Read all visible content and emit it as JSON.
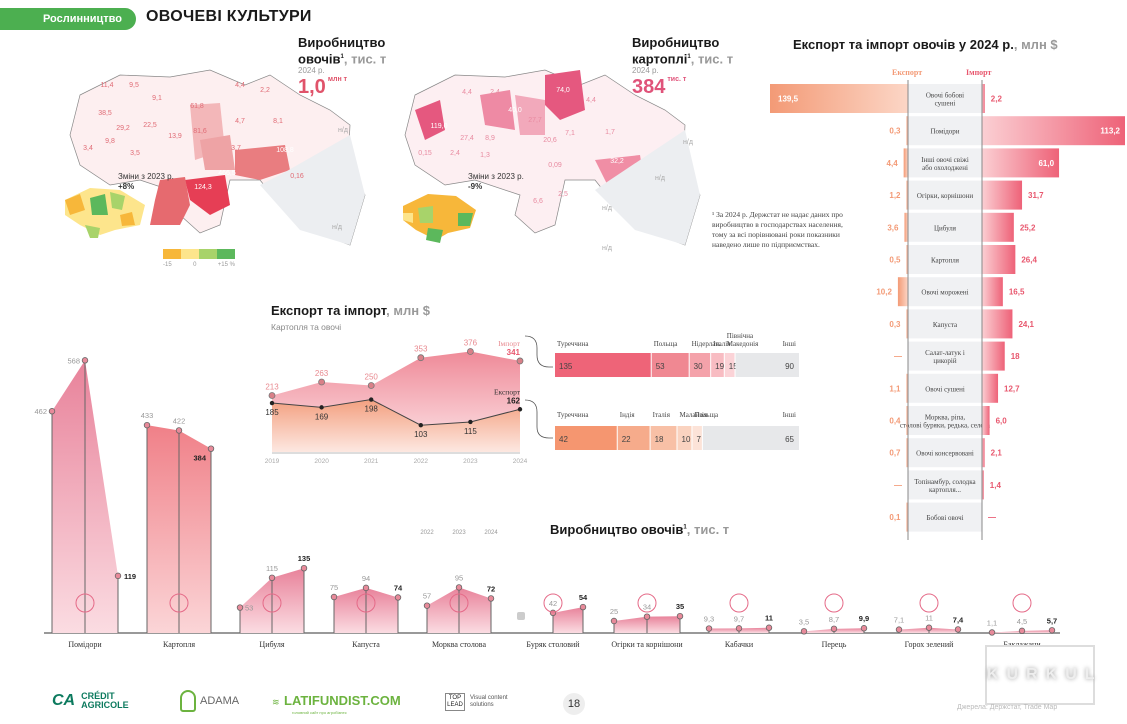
{
  "header": {
    "section_tag": "Рослинництво",
    "page_title": "ОВОЧЕВІ КУЛЬТУРИ"
  },
  "veg_map": {
    "title_line1": "Виробництво",
    "title_line2": "овочів",
    "footnote_mark": "1",
    "unit": ", тис. т",
    "year": "2024 р.",
    "total": "1,0",
    "total_unit": "млн т",
    "regions": [
      "11,4",
      "9,5",
      "9,1",
      "61,8",
      "4,4",
      "2,2",
      "38,5",
      "29,2",
      "22,5",
      "81,6",
      "4,7",
      "8,1",
      "3,4",
      "9,8",
      "3,5",
      "13,9",
      "3,7",
      "108,8",
      "124,3",
      "466,5",
      "0,16",
      "н/д",
      "н/д"
    ],
    "change_label": "Зміни з 2023 р.",
    "change_value": "+8%"
  },
  "potato_map": {
    "title_line1": "Виробництво",
    "title_line2": "картоплі",
    "footnote_mark": "1",
    "unit": ", тис. т",
    "year": "2024 р.",
    "total": "384",
    "total_unit": "тис. т",
    "regions": [
      "4,4",
      "2,4",
      "40,0",
      "27,7",
      "74,0",
      "4,4",
      "119,0",
      "27,4",
      "8,9",
      "20,6",
      "7,1",
      "1,7",
      "0,15",
      "2,4",
      "1,3",
      "0,09",
      "32,2",
      "6,6",
      "2,5",
      "н/д",
      "н/д",
      "н/д",
      "н/д"
    ],
    "change_label": "Зміни з 2023 р.",
    "change_value": "-9%"
  },
  "legend_scale": {
    "labels": [
      "-15",
      "0",
      "+15 %"
    ],
    "colors": [
      "#f7b73a",
      "#fde58c",
      "#a8d36a",
      "#5cb85c"
    ]
  },
  "footnote": "¹ За 2024 р. Держстат не надає даних про виробництво в господарствах населення, тому за всі порівнювані роки показники наведено лише по підприємствах.",
  "chart_data": [
    {
      "type": "bar",
      "title": "Експорт та імпорт овочів у 2024 р.",
      "unit": "млн $",
      "series_labels": {
        "export": "Експорт",
        "import": "Імпорт"
      },
      "categories": [
        "Овочі бобові сушені",
        "Помідори",
        "Інші овочі свіжі або охолоджені",
        "Огірки, корнішони",
        "Цибуля",
        "Картопля",
        "Овочі морожені",
        "Капуста",
        "Салат-латук і цикорій",
        "Овочі сушені",
        "Морква, ріпа, столові буряки, редька, селера",
        "Овочі консервовані",
        "Топінамбур, солодка картопля...",
        "Бобові овочі"
      ],
      "series": [
        {
          "name": "Експорт",
          "values": [
            139.5,
            0.3,
            4.4,
            1.2,
            3.6,
            0.5,
            10.2,
            0.3,
            null,
            1.1,
            0.4,
            0.7,
            null,
            0.1
          ],
          "labels": [
            "139,5",
            "0,3",
            "4,4",
            "1,2",
            "3,6",
            "0,5",
            "10,2",
            "0,3",
            "—",
            "1,1",
            "0,4",
            "0,7",
            "—",
            "0,1"
          ]
        },
        {
          "name": "Імпорт",
          "values": [
            2.2,
            113.2,
            61.0,
            31.7,
            25.2,
            26.4,
            16.5,
            24.1,
            18,
            12.7,
            6.0,
            2.1,
            1.4,
            null
          ],
          "labels": [
            "2,2",
            "113,2",
            "61,0",
            "31,7",
            "25,2",
            "26,4",
            "16,5",
            "24,1",
            "18",
            "12,7",
            "6,0",
            "2,1",
            "1,4",
            "—"
          ]
        }
      ]
    },
    {
      "type": "area",
      "title": "Експорт та імпорт",
      "unit": "млн $",
      "subtitle": "Картопля та овочі",
      "x": [
        "2019",
        "2020",
        "2021",
        "2022",
        "2023",
        "2024"
      ],
      "series": [
        {
          "name": "Імпорт",
          "values": [
            213,
            263,
            250,
            353,
            376,
            341
          ]
        },
        {
          "name": "Експорт",
          "values": [
            185,
            169,
            198,
            103,
            115,
            162
          ]
        }
      ],
      "ylim": [
        0,
        400
      ]
    },
    {
      "type": "bar",
      "title": "Імпорт 2024 за країнами",
      "categories": [
        "Туреччина",
        "Польща",
        "Нідерлан.",
        "Італія",
        "Північна Македонія",
        "Інші"
      ],
      "values": [
        135,
        53,
        30,
        19,
        15,
        90
      ]
    },
    {
      "type": "bar",
      "title": "Експорт 2024 за країнами",
      "categories": [
        "Туреччина",
        "Індія",
        "Італія",
        "Малайзія",
        "Польща",
        "Інші"
      ],
      "values": [
        42,
        22,
        18,
        10,
        7,
        65
      ]
    },
    {
      "type": "area",
      "title": "Виробництво овочів",
      "unit": "тис. т",
      "footnote_mark": "1",
      "years": [
        "2022",
        "2023",
        "2024"
      ],
      "categories": [
        "Помідори",
        "Картопля",
        "Цибуля",
        "Капуста",
        "Морква столова",
        "Буряк столовий",
        "Огірки та корнішони",
        "Кабачки",
        "Перець",
        "Горох зелений",
        "Баклажани"
      ],
      "series": [
        {
          "name": "Помідори",
          "values": [
            462,
            568,
            119
          ],
          "labels": [
            "462",
            "568",
            "119"
          ]
        },
        {
          "name": "Картопля",
          "values": [
            433,
            422,
            384
          ],
          "labels": [
            "433",
            "422",
            "384"
          ]
        },
        {
          "name": "Цибуля",
          "values": [
            53,
            115,
            135
          ],
          "labels": [
            "53",
            "115",
            "135"
          ]
        },
        {
          "name": "Капуста",
          "values": [
            75,
            94,
            74
          ],
          "labels": [
            "75",
            "94",
            "74"
          ]
        },
        {
          "name": "Морква столова",
          "values": [
            57,
            95,
            72
          ],
          "labels": [
            "57",
            "95",
            "72"
          ]
        },
        {
          "name": "Буряк столовий",
          "values": [
            null,
            42,
            54
          ],
          "labels": [
            "",
            "42",
            "54"
          ]
        },
        {
          "name": "Огірки та корнішони",
          "values": [
            25,
            34,
            35
          ],
          "labels": [
            "25",
            "34",
            "35"
          ]
        },
        {
          "name": "Кабачки",
          "values": [
            9.3,
            9.7,
            11
          ],
          "labels": [
            "9,3",
            "9,7",
            "11"
          ]
        },
        {
          "name": "Перець",
          "values": [
            3.5,
            8.7,
            9.9
          ],
          "labels": [
            "3,5",
            "8,7",
            "9,9"
          ]
        },
        {
          "name": "Горох зелений",
          "values": [
            7.1,
            11,
            7.4
          ],
          "labels": [
            "7,1",
            "11",
            "7,4"
          ]
        },
        {
          "name": "Баклажани",
          "values": [
            1.1,
            4.5,
            5.7
          ],
          "labels": [
            "1,1",
            "4,5",
            "5,7"
          ]
        }
      ]
    }
  ],
  "colors": {
    "green": "#4caf50",
    "import": "#e8576e",
    "export": "#f39a76",
    "accent": "#e0536a"
  },
  "footer": {
    "logos": [
      "CRÉDIT AGRICOLE",
      "ADAMA",
      "LATIFUNDIST.COM",
      "TOP LEAD"
    ],
    "latifundist_sub": "головний сайт про агробізнес",
    "toplead_sub": "Visual content solutions",
    "page_number": "18",
    "watermark": "KURKUL",
    "source": "Джерела: Держстат, Trade Map"
  }
}
